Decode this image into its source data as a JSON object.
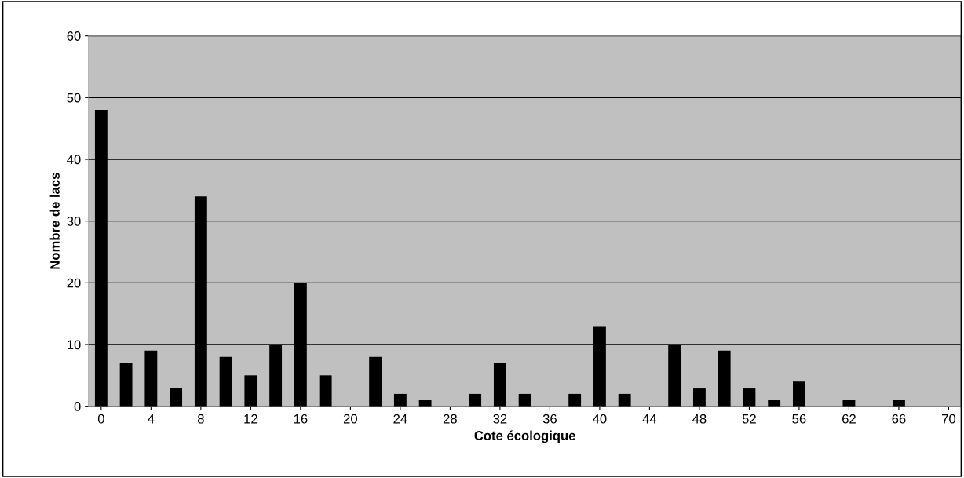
{
  "chart_data": {
    "type": "bar",
    "xlabel": "Cote écologique",
    "ylabel": "Nombre de lacs",
    "categories": [
      "0",
      null,
      "4",
      null,
      "8",
      null,
      "12",
      null,
      "16",
      null,
      "20",
      null,
      "24",
      null,
      "28",
      null,
      "32",
      null,
      "36",
      null,
      "40",
      null,
      "44",
      null,
      "48",
      null,
      "52",
      null,
      "56",
      null,
      "62",
      null,
      "66",
      null,
      "70"
    ],
    "values": [
      48,
      7,
      9,
      3,
      34,
      8,
      5,
      10,
      20,
      5,
      0,
      8,
      2,
      1,
      0,
      2,
      7,
      2,
      0,
      2,
      13,
      2,
      0,
      10,
      3,
      9,
      3,
      1,
      4,
      0,
      1,
      0,
      1,
      0,
      0
    ],
    "color": "#000000",
    "ylim": [
      0,
      60
    ],
    "yticks": [
      0,
      10,
      20,
      30,
      40,
      50,
      60
    ],
    "grid": "y"
  }
}
